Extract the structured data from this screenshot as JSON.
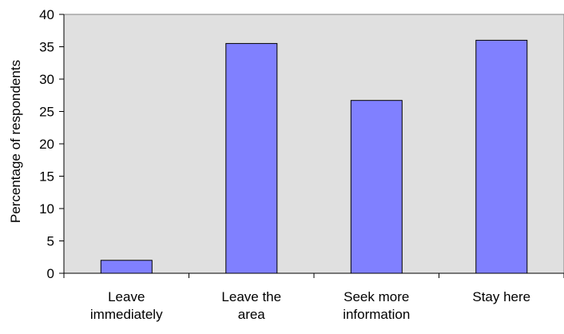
{
  "chart_data": {
    "type": "bar",
    "categories": [
      [
        "Leave",
        "immediately"
      ],
      [
        "Leave the",
        "area"
      ],
      [
        "Seek more",
        "information"
      ],
      [
        "Stay here"
      ]
    ],
    "values": [
      2,
      35.5,
      26.7,
      36
    ],
    "title": "",
    "xlabel": "",
    "ylabel": "Percentage of respondents",
    "ylim": [
      0,
      40
    ],
    "yticks": [
      0,
      5,
      10,
      15,
      20,
      25,
      30,
      35,
      40
    ],
    "grid": false,
    "legend": "none",
    "colors": {
      "bar_fill": "#8080ff",
      "bar_stroke": "#000000",
      "plot_background": "#e0e0e0"
    }
  }
}
